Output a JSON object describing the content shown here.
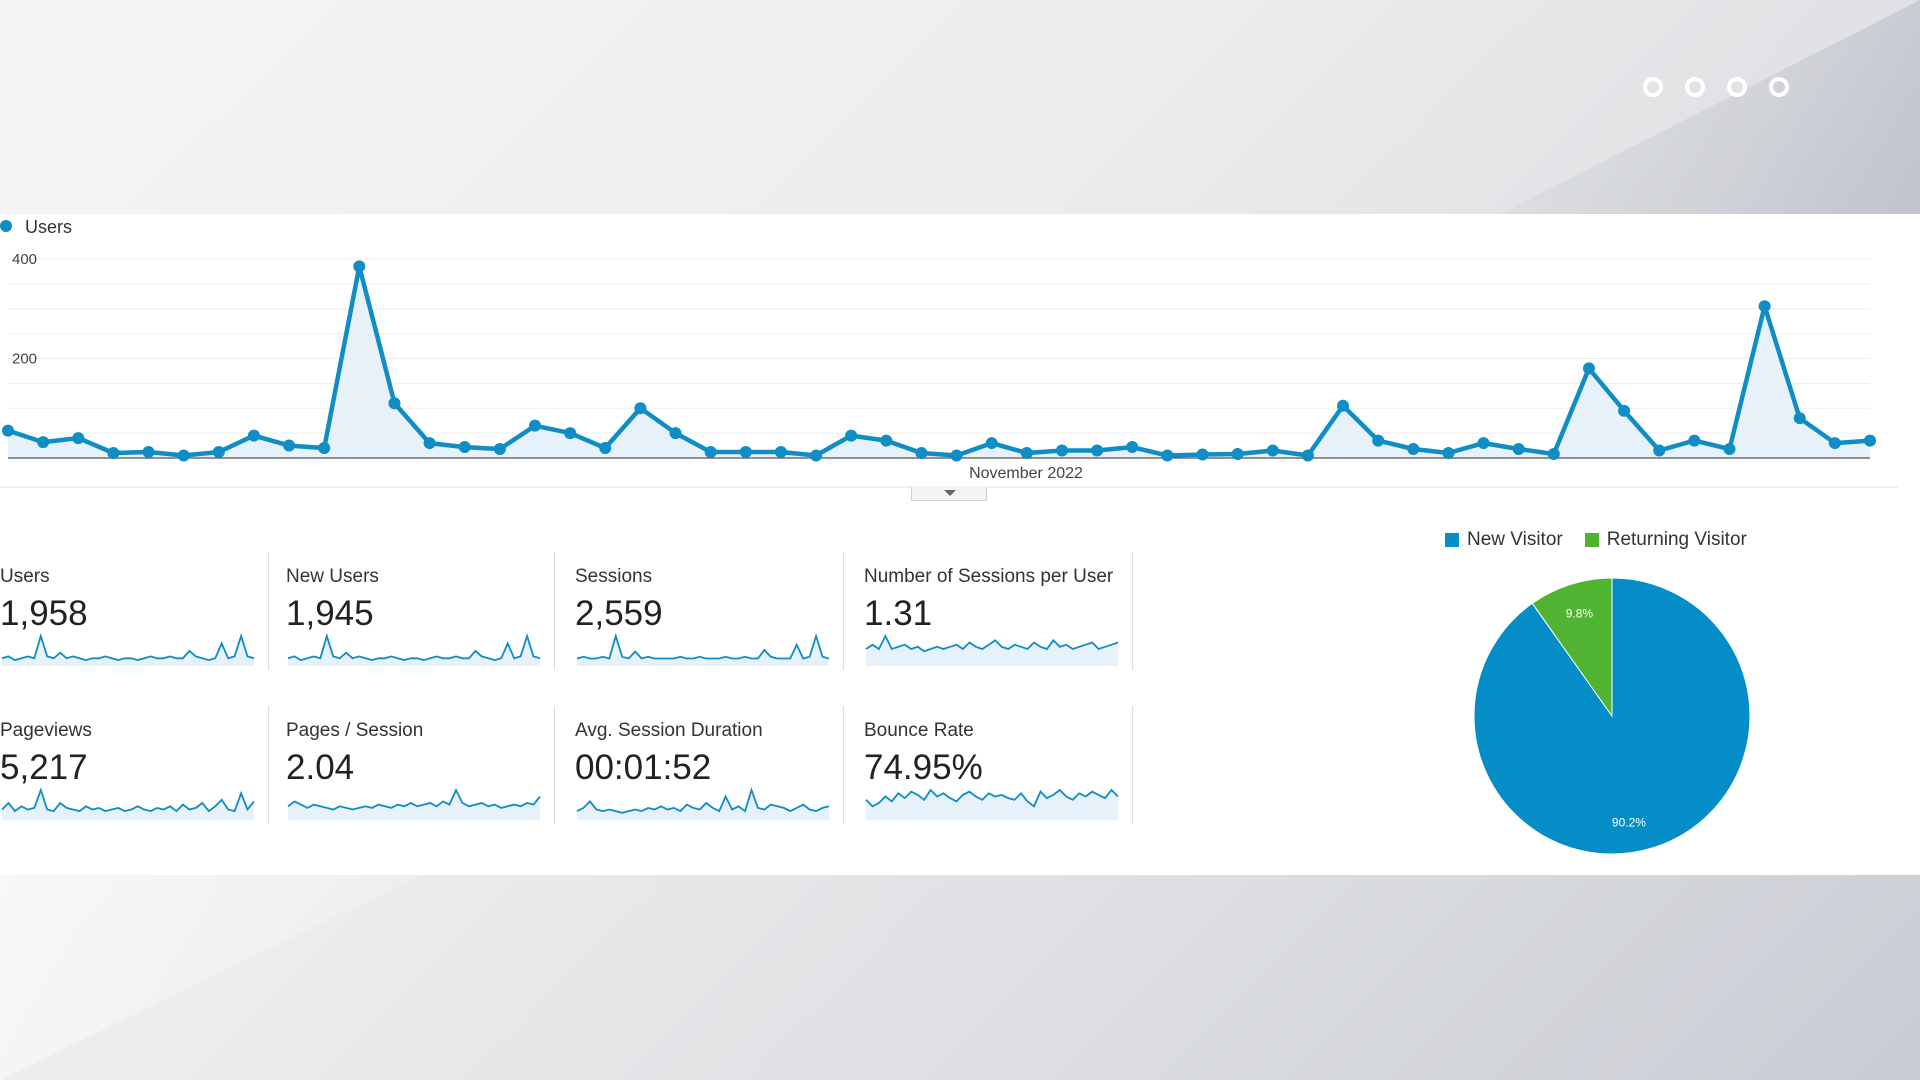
{
  "colors": {
    "users_line": "#0f8dc4",
    "users_fill": "#e6f1fa",
    "new_visitor": "#058dc7",
    "returning_visitor": "#50b432"
  },
  "carousel": {
    "dot_count": 4
  },
  "chart_data": [
    {
      "type": "line",
      "title": "",
      "legend": [
        "Users"
      ],
      "xlabel": "November 2022",
      "ylabel": "",
      "yticks": [
        "400",
        "200"
      ],
      "ylim": [
        0,
        430
      ],
      "grid": true,
      "series": [
        {
          "name": "Users",
          "values": [
            55,
            32,
            40,
            10,
            12,
            5,
            12,
            45,
            25,
            20,
            385,
            110,
            30,
            22,
            18,
            65,
            50,
            20,
            100,
            50,
            12,
            12,
            12,
            5,
            45,
            35,
            10,
            5,
            30,
            10,
            15,
            15,
            22,
            5,
            7,
            8,
            15,
            5,
            105,
            35,
            18,
            10,
            30,
            18,
            8,
            180,
            95,
            15,
            35,
            18,
            305,
            80,
            30,
            35
          ]
        }
      ]
    },
    {
      "type": "pie",
      "legend_position": "top",
      "labels": [
        "New Visitor",
        "Returning Visitor"
      ],
      "values": [
        90.2,
        9.8
      ],
      "value_labels": [
        "90.2%",
        "9.8%"
      ]
    }
  ],
  "metrics": [
    {
      "label": "Users",
      "value": "1,958",
      "spark": [
        2,
        3,
        1,
        2,
        3,
        2,
        14,
        3,
        2,
        5,
        2,
        3,
        2,
        1,
        2,
        2,
        3,
        2,
        1,
        2,
        2,
        1,
        2,
        3,
        2,
        2,
        3,
        2,
        2,
        6,
        3,
        2,
        1,
        2,
        10,
        2,
        3,
        14,
        3,
        2
      ]
    },
    {
      "label": "New Users",
      "value": "1,945",
      "spark": [
        2,
        3,
        1,
        2,
        3,
        2,
        14,
        3,
        2,
        5,
        2,
        3,
        2,
        1,
        2,
        2,
        3,
        2,
        1,
        2,
        2,
        1,
        2,
        3,
        2,
        2,
        3,
        2,
        2,
        6,
        3,
        2,
        1,
        2,
        10,
        2,
        3,
        14,
        3,
        2
      ]
    },
    {
      "label": "Sessions",
      "value": "2,559",
      "spark": [
        2,
        3,
        2,
        2,
        3,
        2,
        15,
        3,
        2,
        6,
        2,
        3,
        2,
        2,
        2,
        2,
        3,
        2,
        2,
        3,
        2,
        2,
        2,
        3,
        2,
        2,
        3,
        2,
        2,
        7,
        3,
        2,
        2,
        2,
        10,
        2,
        3,
        15,
        3,
        2
      ]
    },
    {
      "label": "Number of Sessions per User",
      "value": "1.31",
      "spark": [
        6,
        8,
        6,
        12,
        6,
        7,
        8,
        6,
        7,
        5,
        6,
        7,
        6,
        7,
        8,
        6,
        9,
        7,
        6,
        8,
        10,
        7,
        6,
        8,
        7,
        6,
        9,
        7,
        6,
        10,
        7,
        8,
        6,
        7,
        8,
        9,
        6,
        7,
        8,
        9
      ]
    },
    {
      "label": "Pageviews",
      "value": "5,217",
      "spark": [
        4,
        8,
        3,
        6,
        4,
        5,
        16,
        4,
        3,
        8,
        5,
        4,
        3,
        6,
        4,
        5,
        3,
        4,
        5,
        3,
        4,
        6,
        4,
        3,
        5,
        4,
        6,
        3,
        7,
        4,
        5,
        8,
        3,
        6,
        10,
        4,
        3,
        14,
        4,
        9
      ]
    },
    {
      "label": "Pages / Session",
      "value": "2.04",
      "spark": [
        6,
        9,
        7,
        5,
        7,
        6,
        5,
        4,
        6,
        5,
        4,
        5,
        6,
        5,
        7,
        6,
        5,
        7,
        6,
        8,
        6,
        7,
        8,
        6,
        9,
        7,
        16,
        8,
        6,
        7,
        8,
        6,
        7,
        5,
        6,
        7,
        6,
        8,
        7,
        12
      ]
    },
    {
      "label": "Avg. Session Duration",
      "value": "00:01:52",
      "spark": [
        3,
        5,
        9,
        4,
        3,
        4,
        3,
        2,
        3,
        4,
        3,
        5,
        4,
        6,
        4,
        5,
        3,
        7,
        5,
        4,
        8,
        5,
        3,
        12,
        4,
        6,
        3,
        16,
        5,
        4,
        7,
        6,
        5,
        3,
        5,
        7,
        4,
        3,
        5,
        6
      ]
    },
    {
      "label": "Bounce Rate",
      "value": "74.95%",
      "spark": [
        10,
        6,
        8,
        12,
        9,
        14,
        11,
        15,
        13,
        10,
        16,
        12,
        14,
        11,
        9,
        13,
        15,
        12,
        10,
        14,
        12,
        13,
        11,
        10,
        14,
        9,
        6,
        15,
        11,
        13,
        16,
        12,
        10,
        14,
        12,
        15,
        13,
        11,
        16,
        12
      ]
    }
  ]
}
